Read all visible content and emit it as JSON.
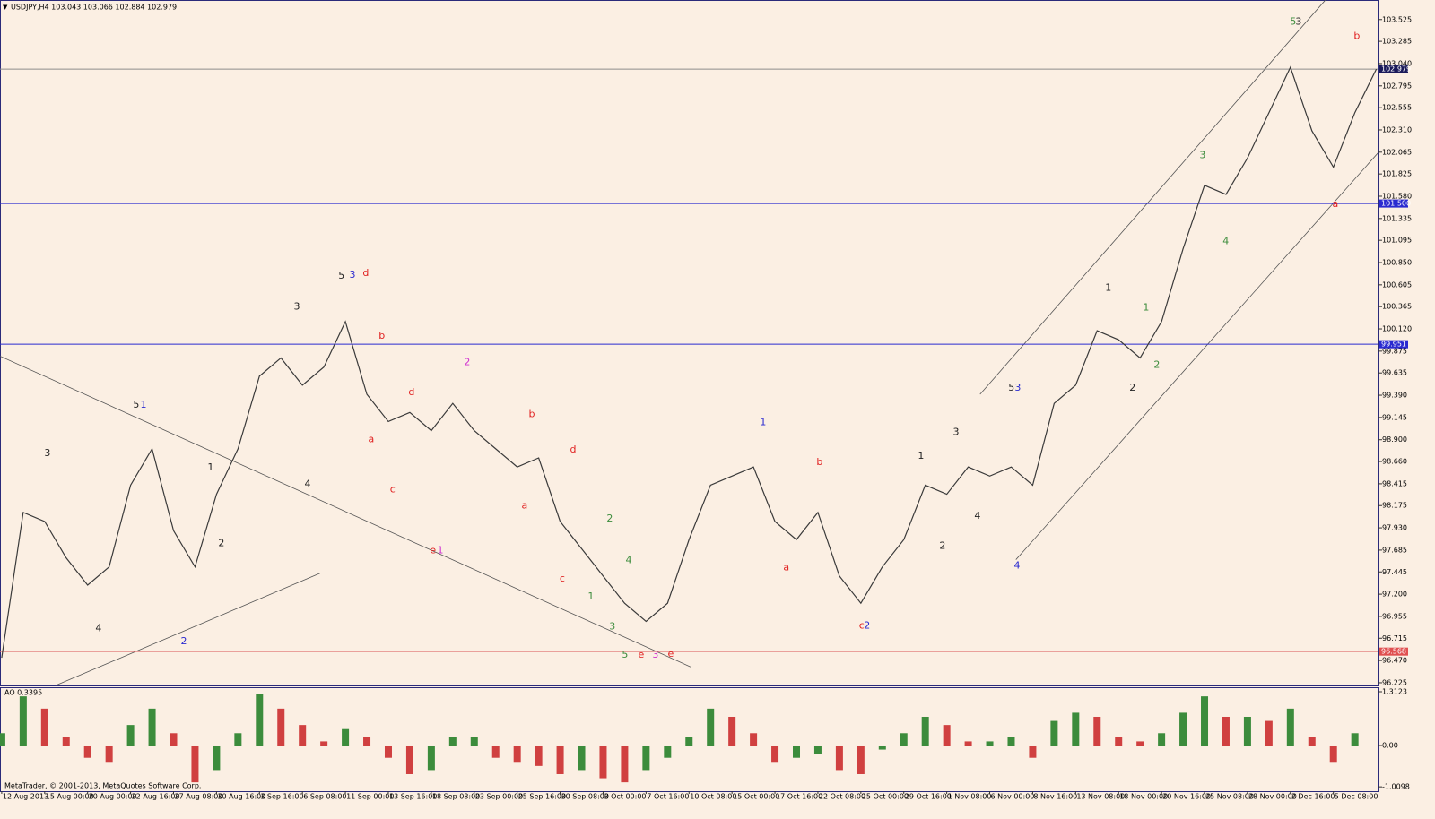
{
  "chart_data": [
    {
      "type": "line",
      "title": "USDJPY,H4  103.043 103.066 102.884 102.979",
      "color": "#3a3a3a",
      "x": [
        0,
        1,
        2,
        3,
        4,
        5,
        6,
        7,
        8,
        9,
        10,
        11,
        12,
        13,
        14,
        15,
        16,
        17,
        18,
        19,
        20,
        21,
        22,
        23,
        24,
        25,
        26,
        27,
        28,
        29,
        30,
        31,
        32,
        33,
        34,
        35,
        36,
        37,
        38,
        39,
        40,
        41,
        42,
        43,
        44,
        45,
        46,
        47,
        48,
        49,
        50,
        51,
        52,
        53,
        54,
        55,
        56,
        57,
        58,
        59,
        60,
        61,
        62,
        63,
        64
      ],
      "values": [
        96.5,
        98.1,
        98.0,
        97.6,
        97.3,
        97.5,
        98.4,
        98.8,
        97.9,
        97.5,
        98.3,
        98.8,
        99.6,
        99.8,
        99.5,
        99.7,
        100.2,
        99.4,
        99.1,
        99.2,
        99.0,
        99.3,
        99.0,
        98.8,
        98.6,
        98.7,
        98.0,
        97.7,
        97.4,
        97.1,
        96.9,
        97.1,
        97.8,
        98.4,
        98.5,
        98.6,
        98.0,
        97.8,
        98.1,
        97.4,
        97.1,
        97.5,
        97.8,
        98.4,
        98.3,
        98.6,
        98.5,
        98.6,
        98.4,
        99.3,
        99.5,
        100.1,
        100.0,
        99.8,
        100.2,
        101.0,
        101.7,
        101.6,
        102.0,
        102.5,
        103.0,
        102.3,
        101.9,
        102.5,
        102.979
      ],
      "xlim": [
        -0.08,
        64.1
      ],
      "ylim": [
        96.195,
        103.72
      ],
      "yticks": [
        103.525,
        103.285,
        {
          "value": 103.04,
          "label": "103.040"
        },
        102.795,
        102.555,
        {
          "value": 102.31,
          "label": "102.310"
        },
        102.065,
        101.825,
        {
          "value": 101.58,
          "label": "101.580"
        },
        101.335,
        101.095,
        {
          "value": 100.85,
          "label": "100.850"
        },
        100.605,
        100.365,
        {
          "value": 100.12,
          "label": "100.120"
        },
        99.875,
        99.635,
        {
          "value": 99.39,
          "label": "99.390"
        },
        99.145,
        {
          "value": 98.9,
          "label": "98.900"
        },
        {
          "value": 98.66,
          "label": "98.660"
        },
        98.415,
        98.175,
        {
          "value": 97.93,
          "label": "97.930"
        },
        97.685,
        97.445,
        {
          "value": 97.2,
          "label": "97.200"
        },
        96.955,
        96.715,
        {
          "value": 96.47,
          "label": "96.470"
        },
        96.225
      ],
      "hlines": [
        {
          "value": 102.979,
          "color": "#8c8c8c",
          "label_color": "#1a1a5a"
        },
        {
          "value": 101.5,
          "label": "101.500",
          "color": "#2a2ad0",
          "label_color": "#2a2ad0"
        },
        {
          "value": 99.951,
          "color": "#2a2ad0",
          "label_color": "#2a2ad0"
        },
        {
          "value": 96.568,
          "color": "#e07070",
          "label_color": "#e05050"
        }
      ],
      "trendlines": [
        {
          "x": [
            45.55,
            61.63
          ],
          "y": [
            99.4,
            103.74
          ]
        },
        {
          "x": [
            47.22,
            64.09
          ],
          "y": [
            97.58,
            102.06
          ]
        },
        {
          "x": [
            -0.08,
            32.07
          ],
          "y": [
            99.82,
            96.4
          ]
        },
        {
          "x": [
            2.51,
            14.82
          ],
          "y": [
            96.195,
            97.43
          ]
        }
      ],
      "annotations": [
        {
          "text": "3",
          "x": 2.13,
          "y": 98.75,
          "color": "#222"
        },
        {
          "text": "4",
          "x": 4.51,
          "y": 96.82,
          "color": "#222"
        },
        {
          "text": "5",
          "x": 6.26,
          "y": 99.28,
          "color": "#222"
        },
        {
          "text": "1",
          "x": 6.6,
          "y": 99.28,
          "color": "#2a2ad0"
        },
        {
          "text": "1",
          "x": 9.73,
          "y": 98.59,
          "color": "#222"
        },
        {
          "text": "2",
          "x": 10.23,
          "y": 97.76,
          "color": "#222"
        },
        {
          "text": "2",
          "x": 8.48,
          "y": 96.68,
          "color": "#2a2ad0"
        },
        {
          "text": "3",
          "x": 13.74,
          "y": 100.36,
          "color": "#222"
        },
        {
          "text": "4",
          "x": 14.24,
          "y": 98.41,
          "color": "#222"
        },
        {
          "text": "5",
          "x": 15.82,
          "y": 100.7,
          "color": "#222"
        },
        {
          "text": "3",
          "x": 16.33,
          "y": 100.71,
          "color": "#2a2ad0"
        },
        {
          "text": "d",
          "x": 16.95,
          "y": 100.73,
          "color": "#e02020"
        },
        {
          "text": "b",
          "x": 17.7,
          "y": 100.04,
          "color": "#e02020"
        },
        {
          "text": "a",
          "x": 17.2,
          "y": 98.9,
          "color": "#e02020"
        },
        {
          "text": "d",
          "x": 19.08,
          "y": 99.42,
          "color": "#e02020"
        },
        {
          "text": "c",
          "x": 18.2,
          "y": 98.35,
          "color": "#e02020"
        },
        {
          "text": "2",
          "x": 21.67,
          "y": 99.75,
          "color": "#d030d0"
        },
        {
          "text": "e",
          "x": 20.08,
          "y": 97.68,
          "color": "#e02020"
        },
        {
          "text": "1",
          "x": 20.42,
          "y": 97.68,
          "color": "#d030d0"
        },
        {
          "text": "b",
          "x": 24.68,
          "y": 99.18,
          "color": "#e02020"
        },
        {
          "text": "d",
          "x": 26.6,
          "y": 98.79,
          "color": "#e02020"
        },
        {
          "text": "a",
          "x": 24.34,
          "y": 98.17,
          "color": "#e02020"
        },
        {
          "text": "c",
          "x": 26.1,
          "y": 97.37,
          "color": "#e02020"
        },
        {
          "text": "2",
          "x": 28.31,
          "y": 98.03,
          "color": "#3c8c3c"
        },
        {
          "text": "4",
          "x": 29.19,
          "y": 97.57,
          "color": "#3c8c3c"
        },
        {
          "text": "1",
          "x": 27.43,
          "y": 97.17,
          "color": "#3c8c3c"
        },
        {
          "text": "3",
          "x": 28.43,
          "y": 96.84,
          "color": "#3c8c3c"
        },
        {
          "text": "5",
          "x": 29.02,
          "y": 96.53,
          "color": "#3c8c3c"
        },
        {
          "text": "e",
          "x": 29.77,
          "y": 96.53,
          "color": "#e02020"
        },
        {
          "text": "3",
          "x": 30.44,
          "y": 96.53,
          "color": "#d030d0"
        },
        {
          "text": "e",
          "x": 31.15,
          "y": 96.54,
          "color": "#e02020"
        },
        {
          "text": "1",
          "x": 35.45,
          "y": 99.09,
          "color": "#2a2ad0"
        },
        {
          "text": "b",
          "x": 38.08,
          "y": 98.65,
          "color": "#e02020"
        },
        {
          "text": "a",
          "x": 36.53,
          "y": 97.49,
          "color": "#e02020"
        },
        {
          "text": "c",
          "x": 40.04,
          "y": 96.85,
          "color": "#e02020"
        },
        {
          "text": "2",
          "x": 40.29,
          "y": 96.85,
          "color": "#2a2ad0"
        },
        {
          "text": "1",
          "x": 42.8,
          "y": 98.72,
          "color": "#222"
        },
        {
          "text": "2",
          "x": 43.8,
          "y": 97.73,
          "color": "#222"
        },
        {
          "text": "3",
          "x": 44.43,
          "y": 98.98,
          "color": "#222"
        },
        {
          "text": "4",
          "x": 45.43,
          "y": 98.06,
          "color": "#222"
        },
        {
          "text": "5",
          "x": 47.01,
          "y": 99.47,
          "color": "#222"
        },
        {
          "text": "3",
          "x": 47.31,
          "y": 99.47,
          "color": "#2a2ad0"
        },
        {
          "text": "4",
          "x": 47.27,
          "y": 97.51,
          "color": "#2a2ad0"
        },
        {
          "text": "1",
          "x": 51.52,
          "y": 100.57,
          "color": "#222"
        },
        {
          "text": "2",
          "x": 52.65,
          "y": 99.47,
          "color": "#222"
        },
        {
          "text": "1",
          "x": 53.28,
          "y": 100.35,
          "color": "#3c8c3c"
        },
        {
          "text": "2",
          "x": 53.78,
          "y": 99.72,
          "color": "#3c8c3c"
        },
        {
          "text": "3",
          "x": 55.91,
          "y": 102.03,
          "color": "#3c8c3c"
        },
        {
          "text": "4",
          "x": 56.99,
          "y": 101.08,
          "color": "#3c8c3c"
        },
        {
          "text": "5",
          "x": 60.13,
          "y": 103.5,
          "color": "#3c8c3c"
        },
        {
          "text": "3",
          "x": 60.38,
          "y": 103.5,
          "color": "#222"
        },
        {
          "text": "b",
          "x": 63.09,
          "y": 103.34,
          "color": "#e02020"
        },
        {
          "text": "a",
          "x": 62.09,
          "y": 101.49,
          "color": "#e02020"
        }
      ]
    },
    {
      "type": "bar",
      "title": "AO 0.3395",
      "up_color": "#3c8c3c",
      "down_color": "#d04040",
      "x": [
        0,
        1,
        2,
        3,
        4,
        5,
        6,
        7,
        8,
        9,
        10,
        11,
        12,
        13,
        14,
        15,
        16,
        17,
        18,
        19,
        20,
        21,
        22,
        23,
        24,
        25,
        26,
        27,
        28,
        29,
        30,
        31,
        32,
        33,
        34,
        35,
        36,
        37,
        38,
        39,
        40,
        41,
        42,
        43,
        44,
        45,
        46,
        47,
        48,
        49,
        50,
        51,
        52,
        53,
        54,
        55,
        56,
        57,
        58,
        59,
        60,
        61,
        62,
        63
      ],
      "values": [
        0.3,
        1.2,
        0.9,
        0.2,
        -0.3,
        -0.4,
        0.5,
        0.9,
        0.3,
        -0.9,
        -0.6,
        0.3,
        1.25,
        0.9,
        0.5,
        0.1,
        0.4,
        0.2,
        -0.3,
        -0.7,
        -0.6,
        0.2,
        0.2,
        -0.3,
        -0.4,
        -0.5,
        -0.7,
        -0.6,
        -0.8,
        -0.9,
        -0.6,
        -0.3,
        0.2,
        0.9,
        0.7,
        0.3,
        -0.4,
        -0.3,
        -0.2,
        -0.6,
        -0.7,
        -0.1,
        0.3,
        0.7,
        0.5,
        0.1,
        0.1,
        0.2,
        -0.3,
        0.6,
        0.8,
        0.7,
        0.2,
        0.1,
        0.3,
        0.8,
        1.2,
        0.7,
        0.7,
        0.6,
        0.9,
        0.2,
        -0.4,
        0.3
      ],
      "xlim": [
        -0.08,
        64.1
      ],
      "ylim": [
        -1.094,
        1.4
      ],
      "yticks": [
        1.3123,
        {
          "value": 0,
          "label": "0.00"
        },
        -1.0098
      ],
      "xticks": [
        {
          "value": 0,
          "label": "12 Aug 2013"
        },
        {
          "value": 2,
          "label": "15 Aug 00:00"
        },
        {
          "value": 4,
          "label": "20 Aug 00:00"
        },
        {
          "value": 6,
          "label": "22 Aug 16:00"
        },
        {
          "value": 8,
          "label": "27 Aug 08:00"
        },
        {
          "value": 10,
          "label": "30 Aug 16:00"
        },
        {
          "value": 12,
          "label": "3 Sep 16:00"
        },
        {
          "value": 14,
          "label": "6 Sep 08:00"
        },
        {
          "value": 16,
          "label": "11 Sep 00:00"
        },
        {
          "value": 18,
          "label": "13 Sep 16:00"
        },
        {
          "value": 20,
          "label": "18 Sep 08:00"
        },
        {
          "value": 22,
          "label": "23 Sep 00:00"
        },
        {
          "value": 24,
          "label": "25 Sep 16:00"
        },
        {
          "value": 26,
          "label": "30 Sep 08:00"
        },
        {
          "value": 28,
          "label": "3 Oct 00:00"
        },
        {
          "value": 30,
          "label": "7 Oct 16:00"
        },
        {
          "value": 32,
          "label": "10 Oct 08:00"
        },
        {
          "value": 34,
          "label": "15 Oct 00:00"
        },
        {
          "value": 36,
          "label": "17 Oct 16:00"
        },
        {
          "value": 38,
          "label": "22 Oct 08:00"
        },
        {
          "value": 40,
          "label": "25 Oct 00:00"
        },
        {
          "value": 42,
          "label": "29 Oct 16:00"
        },
        {
          "value": 44,
          "label": "1 Nov 08:00"
        },
        {
          "value": 46,
          "label": "6 Nov 00:00"
        },
        {
          "value": 48,
          "label": "8 Nov 16:00"
        },
        {
          "value": 50,
          "label": "13 Nov 08:00"
        },
        {
          "value": 52,
          "label": "18 Nov 00:00"
        },
        {
          "value": 54,
          "label": "20 Nov 16:00"
        },
        {
          "value": 56,
          "label": "25 Nov 08:00"
        },
        {
          "value": 58,
          "label": "28 Nov 00:00"
        },
        {
          "value": 60,
          "label": "2 Dec 16:00"
        },
        {
          "value": 62,
          "label": "5 Dec 08:00"
        }
      ]
    }
  ],
  "footer": "MetaTrader, © 2001-2013, MetaQuotes Software Corp."
}
